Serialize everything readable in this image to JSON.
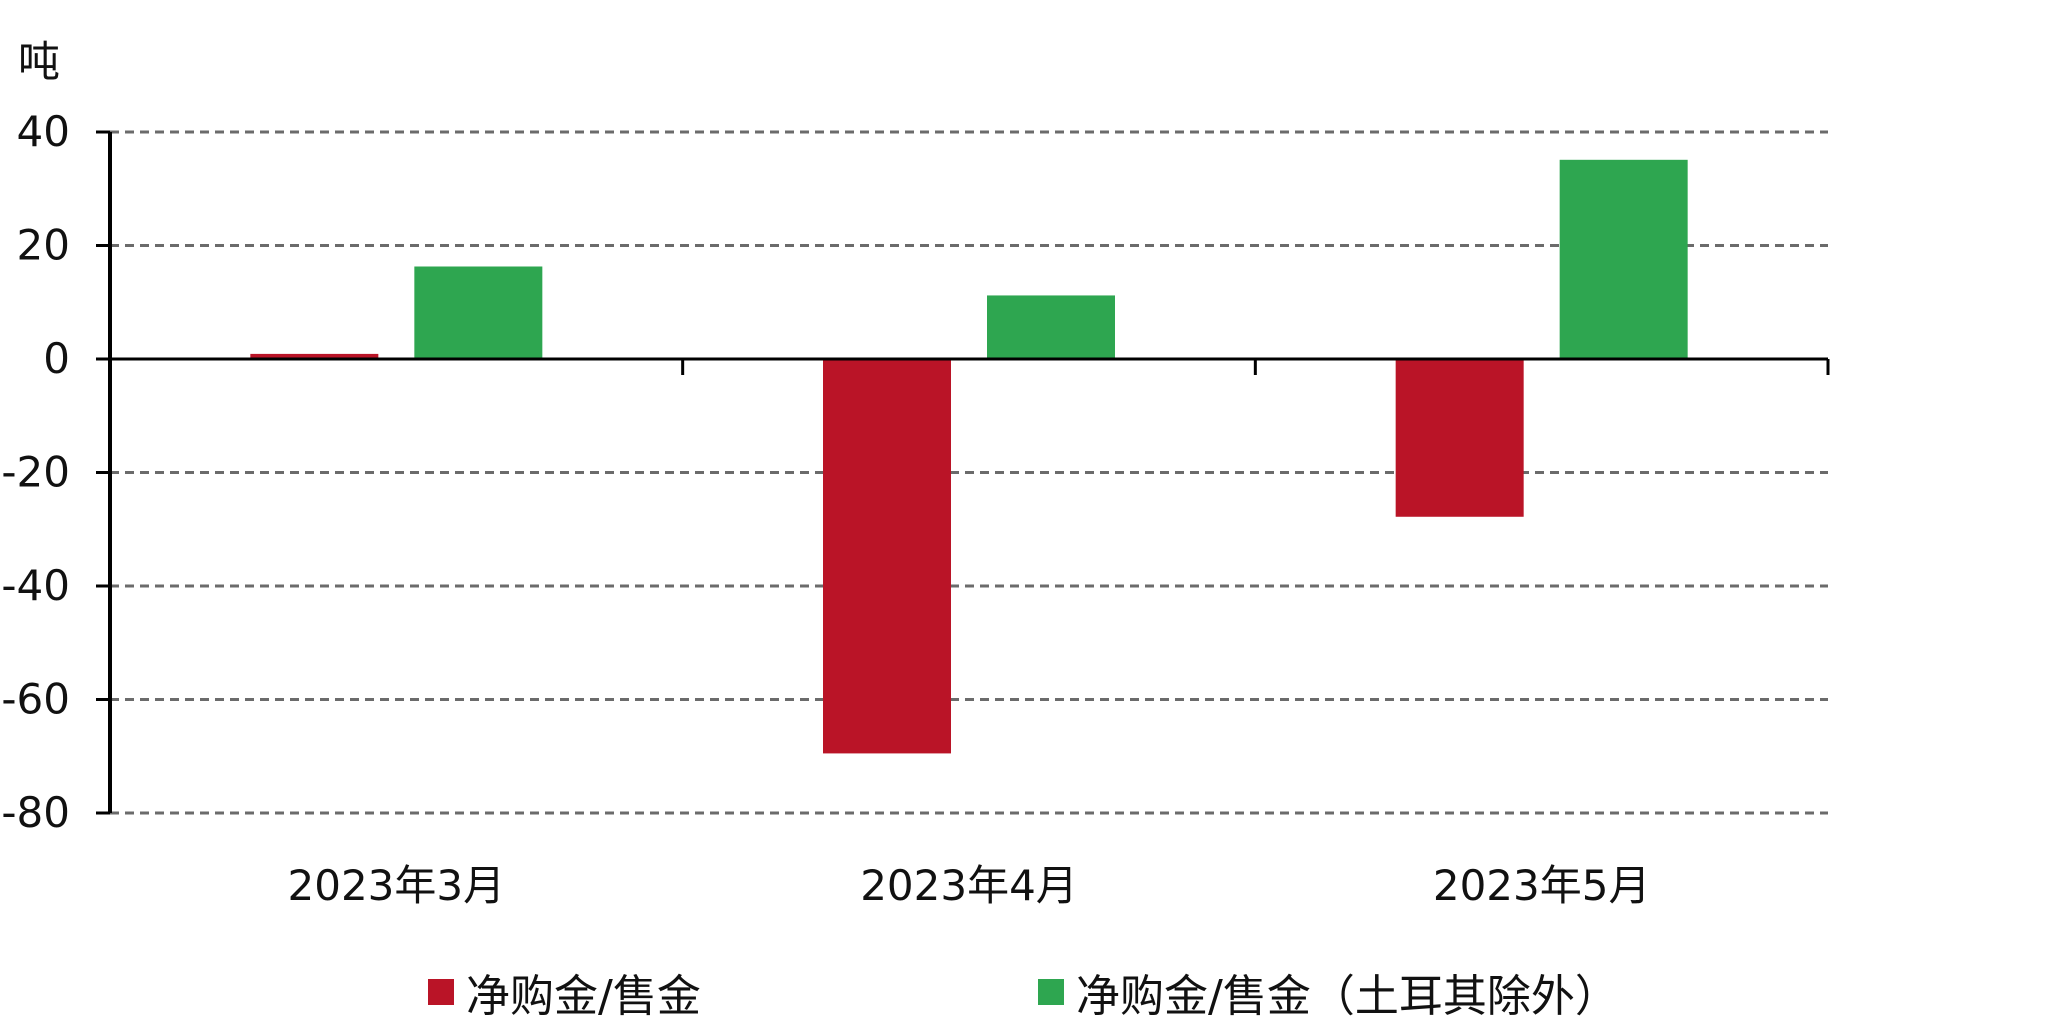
{
  "chart_data": {
    "type": "bar",
    "unit_label": "吨",
    "categories": [
      "2023年3月",
      "2023年4月",
      "2023年5月"
    ],
    "series": [
      {
        "name": "净购金/售金",
        "color": "#BA1427",
        "values": [
          0.9,
          -69.5,
          -27.8
        ]
      },
      {
        "name": "净购金/售金（土耳其除外）",
        "color": "#2EA650",
        "values": [
          16.3,
          11.2,
          35.1
        ]
      }
    ],
    "ylim": [
      -80,
      40
    ],
    "yticks": [
      40,
      20,
      0,
      -20,
      -40,
      -60,
      -80
    ],
    "ytick_labels": [
      "40",
      "20",
      "0",
      "-20",
      "-40",
      "-60",
      "-80"
    ],
    "grid": "horizontal dashed",
    "legend_position": "bottom"
  }
}
